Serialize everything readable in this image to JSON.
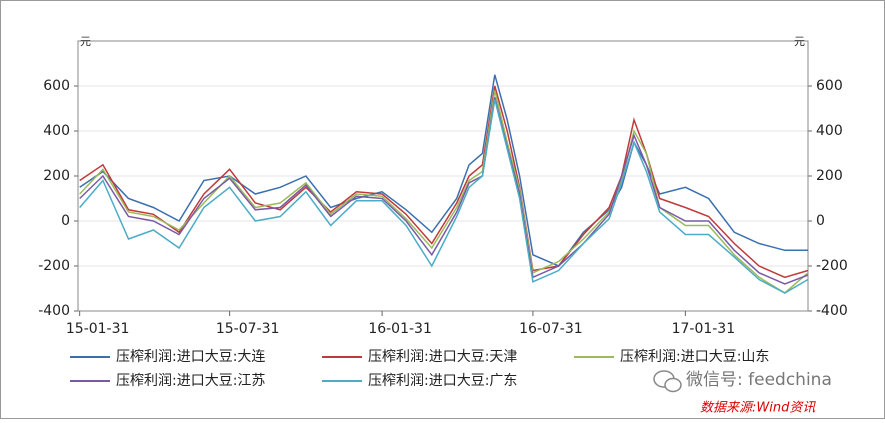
{
  "chart_data": {
    "type": "line",
    "y_unit_left": "元",
    "y_unit_right": "元",
    "xlim": [
      "2015-01-29",
      "2017-06-28"
    ],
    "xticks": [
      {
        "value": "2015-01-31",
        "label": "15-01-31"
      },
      {
        "value": "2015-07-31",
        "label": "15-07-31"
      },
      {
        "value": "2016-01-31",
        "label": "16-01-31"
      },
      {
        "value": "2016-07-31",
        "label": "16-07-31"
      },
      {
        "value": "2017-01-31",
        "label": "17-01-31"
      }
    ],
    "ylim": [
      -400,
      800
    ],
    "yticks": [
      -400,
      -200,
      0,
      200,
      400,
      600
    ],
    "y2lim": [
      -400,
      800
    ],
    "y2ticks": [
      -400,
      -200,
      0,
      200,
      400,
      600
    ],
    "grid": true,
    "x": [
      "2015-01-31",
      "2015-02-28",
      "2015-03-31",
      "2015-04-30",
      "2015-05-31",
      "2015-06-30",
      "2015-07-31",
      "2015-08-31",
      "2015-09-30",
      "2015-10-31",
      "2015-11-30",
      "2015-12-31",
      "2016-01-31",
      "2016-02-29",
      "2016-03-31",
      "2016-04-30",
      "2016-05-15",
      "2016-05-31",
      "2016-06-15",
      "2016-06-30",
      "2016-07-15",
      "2016-07-31",
      "2016-08-31",
      "2016-09-30",
      "2016-10-31",
      "2016-11-15",
      "2016-11-30",
      "2016-12-15",
      "2016-12-31",
      "2017-01-31",
      "2017-02-28",
      "2017-03-31",
      "2017-04-30",
      "2017-05-31",
      "2017-06-28"
    ],
    "series": [
      {
        "name": "压榨利润:进口大豆:大连",
        "color": "#3a6fb0",
        "values": [
          150,
          220,
          100,
          60,
          0,
          180,
          200,
          120,
          150,
          200,
          60,
          100,
          130,
          50,
          -50,
          100,
          250,
          300,
          650,
          450,
          200,
          -150,
          -200,
          -50,
          50,
          150,
          350,
          250,
          120,
          150,
          100,
          -50,
          -100,
          -130,
          -130
        ]
      },
      {
        "name": "压榨利润:进口大豆:天津",
        "color": "#c0393b",
        "values": [
          180,
          250,
          50,
          30,
          -50,
          120,
          230,
          80,
          50,
          150,
          40,
          130,
          120,
          30,
          -100,
          80,
          200,
          250,
          600,
          400,
          150,
          -220,
          -200,
          -60,
          60,
          200,
          450,
          300,
          100,
          60,
          20,
          -100,
          -200,
          -250,
          -220
        ]
      },
      {
        "name": "压榨利润:进口大豆:山东",
        "color": "#9bbb59",
        "values": [
          120,
          230,
          40,
          20,
          -40,
          80,
          200,
          60,
          80,
          170,
          30,
          120,
          110,
          10,
          -120,
          60,
          180,
          220,
          580,
          350,
          140,
          -230,
          -180,
          -80,
          40,
          180,
          400,
          300,
          60,
          -20,
          -20,
          -150,
          -250,
          -320,
          -230
        ]
      },
      {
        "name": "压榨利润:进口大豆:江苏",
        "color": "#7a5aa6",
        "values": [
          100,
          200,
          20,
          0,
          -60,
          100,
          190,
          50,
          60,
          160,
          20,
          110,
          100,
          0,
          -150,
          40,
          170,
          200,
          550,
          330,
          120,
          -250,
          -200,
          -100,
          30,
          200,
          380,
          250,
          60,
          0,
          0,
          -130,
          -230,
          -280,
          -240
        ]
      },
      {
        "name": "压榨利润:进口大豆:广东",
        "color": "#4bacc6",
        "values": [
          60,
          180,
          -80,
          -40,
          -120,
          60,
          150,
          0,
          20,
          130,
          -20,
          90,
          90,
          -20,
          -200,
          20,
          150,
          200,
          540,
          320,
          100,
          -270,
          -220,
          -100,
          10,
          170,
          350,
          220,
          40,
          -60,
          -60,
          -160,
          -260,
          -320,
          -260
        ]
      }
    ],
    "watermark": "微信号: feedchina",
    "source": "数据来源:Wind资讯"
  }
}
